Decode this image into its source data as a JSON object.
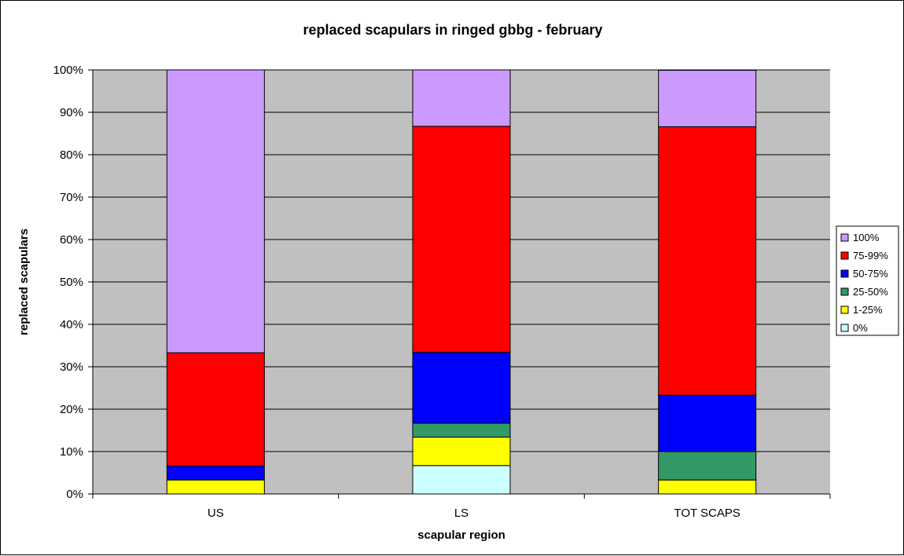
{
  "chart_data": {
    "type": "bar",
    "stacked": "percent",
    "title": "replaced scapulars in ringed gbbg - february",
    "xlabel": "scapular region",
    "ylabel": "replaced scapulars",
    "categories": [
      "US",
      "LS",
      "TOT SCAPS"
    ],
    "y_ticks": [
      "0%",
      "10%",
      "20%",
      "30%",
      "40%",
      "50%",
      "60%",
      "70%",
      "80%",
      "90%",
      "100%"
    ],
    "ylim": [
      0,
      100
    ],
    "grid": true,
    "legend_position": "right",
    "plot_background": "#c0c0c0",
    "series": [
      {
        "name": "0%",
        "color": "#ccffff",
        "values": [
          0,
          6.7,
          0
        ]
      },
      {
        "name": "1-25%",
        "color": "#ffff00",
        "values": [
          3.3,
          6.7,
          3.3
        ]
      },
      {
        "name": "25-50%",
        "color": "#339966",
        "values": [
          0,
          3.3,
          6.7
        ]
      },
      {
        "name": "50-75%",
        "color": "#0000ff",
        "values": [
          3.3,
          16.7,
          13.3
        ]
      },
      {
        "name": "75-99%",
        "color": "#ff0000",
        "values": [
          26.7,
          53.3,
          63.3
        ]
      },
      {
        "name": "100%",
        "color": "#cc99ff",
        "values": [
          66.7,
          13.3,
          13.3
        ]
      }
    ]
  }
}
